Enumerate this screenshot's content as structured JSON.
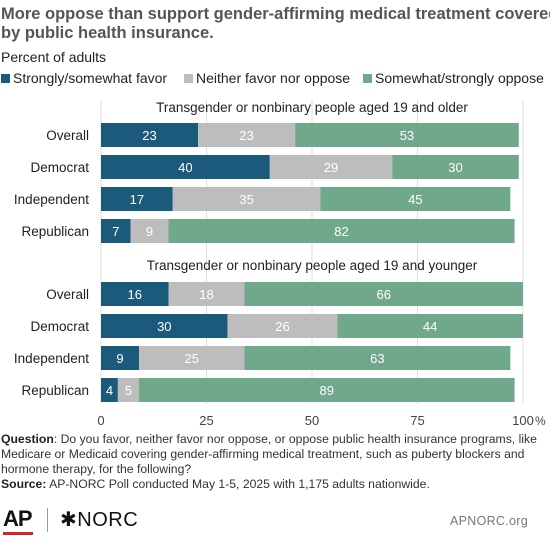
{
  "title_lines": [
    "More oppose than support gender-affirming medical treatment covered",
    "by public health insurance."
  ],
  "subtitle": "Percent of adults",
  "legend": [
    {
      "label": "Strongly/somewhat favor",
      "color": "#1b5a7a"
    },
    {
      "label": "Neither favor nor oppose",
      "color": "#bdbdbd"
    },
    {
      "label": "Somewhat/strongly oppose",
      "color": "#6fa88a"
    }
  ],
  "chart_data": {
    "type": "bar",
    "orientation": "horizontal-stacked",
    "series_names": [
      "Strongly/somewhat favor",
      "Neither favor nor oppose",
      "Somewhat/strongly oppose"
    ],
    "colors": [
      "#1b5a7a",
      "#bdbdbd",
      "#6fa88a"
    ],
    "groups": [
      {
        "title": "Transgender or nonbinary people aged 19 and older",
        "rows": [
          {
            "label": "Overall",
            "values": [
              23,
              23,
              53
            ]
          },
          {
            "label": "Democrat",
            "values": [
              40,
              29,
              30
            ]
          },
          {
            "label": "Independent",
            "values": [
              17,
              35,
              45
            ]
          },
          {
            "label": "Republican",
            "values": [
              7,
              9,
              82
            ]
          }
        ]
      },
      {
        "title": "Transgender or nonbinary people aged 19 and younger",
        "rows": [
          {
            "label": "Overall",
            "values": [
              16,
              18,
              66
            ]
          },
          {
            "label": "Democrat",
            "values": [
              30,
              26,
              44
            ]
          },
          {
            "label": "Independent",
            "values": [
              9,
              25,
              63
            ]
          },
          {
            "label": "Republican",
            "values": [
              4,
              5,
              89
            ]
          }
        ]
      }
    ],
    "xlim": [
      0,
      100
    ],
    "xticks": [
      "0",
      "25",
      "50",
      "75",
      "100"
    ],
    "x_unit": "%",
    "grid": true,
    "legend_position": "top"
  },
  "note": {
    "question_label": "Question",
    "question_text": ": Do you favor, neither favor nor oppose, or oppose public health insurance programs, like Medicare or Medicaid covering gender-affirming medical treatment, such as puberty blockers and hormone therapy, for the following?",
    "source_label": "Source:",
    "source_text": " AP-NORC Poll conducted May 1-5, 2025 with 1,175 adults nationwide."
  },
  "footer": {
    "ap_logo": "AP",
    "norc_logo": "✱NORC",
    "site": "APNORC.org"
  }
}
